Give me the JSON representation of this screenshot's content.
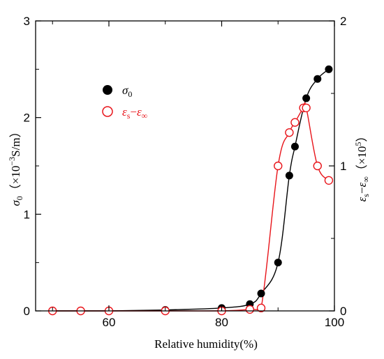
{
  "chart_data": {
    "type": "scatter",
    "xlabel": "Relative humidity(%)",
    "xlim": [
      47,
      100
    ],
    "x_ticks": [
      "60",
      "80",
      "100"
    ],
    "x_tick_values": [
      60,
      80,
      100
    ],
    "ylabel_left": {
      "symbol": "σ",
      "sub": "0",
      "unit_pre": "（×10",
      "unit_sup": "−3",
      "unit_post": "S/m）"
    },
    "ylim_left": [
      0,
      3
    ],
    "y_ticks_left": [
      "0",
      "1",
      "2",
      "3"
    ],
    "y_tick_values_left": [
      0,
      1,
      2,
      3
    ],
    "ylabel_right": {
      "symbol1": "ε",
      "sub1": "s",
      "dash": "−",
      "symbol2": "ε",
      "sub2": "∞",
      "unit_pre": "（×10",
      "unit_sup": "5",
      "unit_post": "）"
    },
    "ylim_right": [
      0,
      2
    ],
    "y_ticks_right": [
      "0",
      "1",
      "2"
    ],
    "y_tick_values_right": [
      0,
      1,
      2
    ],
    "legend_position": "upper-left",
    "series": [
      {
        "name": "σ0",
        "legend_symbol": "σ",
        "legend_sub": "0",
        "axis": "left",
        "marker": "filled-circle",
        "color": "#000000",
        "x": [
          50,
          55,
          60,
          70,
          80,
          85,
          87,
          90,
          92,
          93,
          95,
          97,
          99
        ],
        "y": [
          0,
          0,
          0,
          0.01,
          0.03,
          0.07,
          0.18,
          0.5,
          1.4,
          1.7,
          2.2,
          2.4,
          2.5
        ]
      },
      {
        "name": "εs−ε∞",
        "legend_symbol": "ε",
        "legend_sub": "s",
        "legend_dash": "−",
        "legend_symbol2": "ε",
        "legend_sub2": "∞",
        "axis": "right",
        "marker": "open-circle",
        "color": "#e8141a",
        "x": [
          50,
          55,
          60,
          70,
          80,
          85,
          87,
          90,
          92,
          93,
          94.5,
          95,
          97,
          99
        ],
        "y": [
          0,
          0,
          0,
          0,
          0,
          0.01,
          0.02,
          1.0,
          1.23,
          1.3,
          1.4,
          1.4,
          1.0,
          0.9
        ]
      }
    ]
  }
}
